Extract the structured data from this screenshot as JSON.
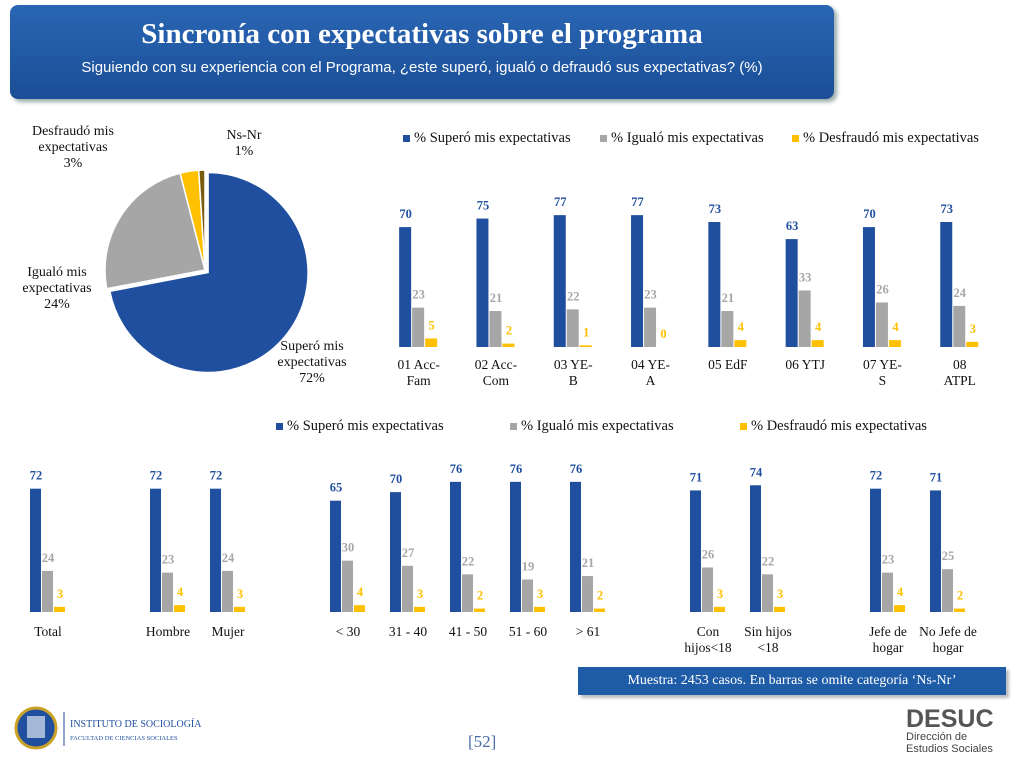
{
  "header": {
    "title": "Sincronía con expectativas sobre el programa",
    "subtitle": "Siguiendo con su experiencia con el Programa, ¿este superó, igualó o defraudó sus expectativas? (%)"
  },
  "chart_data": [
    {
      "type": "pie",
      "categories": [
        "Superó mis expectativas",
        "Igualó mis expectativas",
        "Desfraudó mis expectativas",
        "Ns-Nr"
      ],
      "values": [
        72,
        24,
        3,
        1
      ],
      "value_labels": [
        "72%",
        "24%",
        "3%",
        "1%"
      ],
      "colors": [
        "#1f4f9e",
        "#a6a6a6",
        "#ffc000",
        "#7a5c10"
      ]
    },
    {
      "type": "bar",
      "categories": [
        "01 Acc-Fam",
        "02 Acc-Com",
        "03 YE-B",
        "04 YE-A",
        "05 EdF",
        "06 YTJ",
        "07 YE-S",
        "08 ATPL"
      ],
      "series": [
        {
          "name": "% Superó mis expectativas",
          "color": "#1f4f9e",
          "values": [
            70,
            75,
            77,
            77,
            73,
            63,
            70,
            73
          ]
        },
        {
          "name": "% Igualó mis expectativas",
          "color": "#a6a6a6",
          "values": [
            23,
            21,
            22,
            23,
            21,
            33,
            26,
            24
          ]
        },
        {
          "name": "% Desfraudó mis expectativas",
          "color": "#ffc000",
          "values": [
            5,
            2,
            1,
            0,
            4,
            4,
            4,
            3
          ]
        }
      ],
      "ylim": [
        0,
        80
      ],
      "legend": "top"
    },
    {
      "type": "bar",
      "categories": [
        "Total",
        null,
        "Hombre",
        "Mujer",
        null,
        "< 30",
        "31 - 40",
        "41 - 50",
        "51 - 60",
        "> 61",
        null,
        "Con hijos<18",
        "Sin hijos <18",
        null,
        "Jefe de hogar",
        "No Jefe de hogar"
      ],
      "series": [
        {
          "name": "% Superó mis expectativas",
          "color": "#1f4f9e",
          "values": [
            72,
            null,
            72,
            72,
            null,
            65,
            70,
            76,
            76,
            76,
            null,
            71,
            74,
            null,
            72,
            71
          ]
        },
        {
          "name": "% Igualó mis expectativas",
          "color": "#a6a6a6",
          "values": [
            24,
            null,
            23,
            24,
            null,
            30,
            27,
            22,
            19,
            21,
            null,
            26,
            22,
            null,
            23,
            25
          ]
        },
        {
          "name": "% Desfraudó mis expectativas",
          "color": "#ffc000",
          "values": [
            3,
            null,
            4,
            3,
            null,
            4,
            3,
            2,
            3,
            2,
            null,
            3,
            3,
            null,
            4,
            2
          ]
        }
      ],
      "ylim": [
        0,
        80
      ],
      "legend": "top"
    }
  ],
  "footer": {
    "note": "Muestra: 2453 casos. En barras se omite categoría ‘Ns-Nr’",
    "page": "[52]",
    "institute": "INSTITUTO DE SOCIOLOGÍA",
    "faculty": "FACULTAD DE CIENCIAS SOCIALES",
    "brand": "DESUC",
    "brand_sub": "Dirección de Estudios Sociales"
  }
}
